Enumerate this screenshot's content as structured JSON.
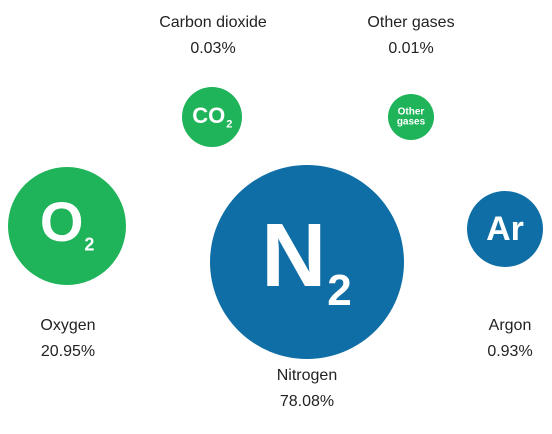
{
  "nodes": [
    {
      "name": "Carbon dioxide",
      "value": "0.03%",
      "symbol": "CO",
      "subscript": "2"
    },
    {
      "name": "Other gases",
      "value": "0.01%",
      "symbol": [
        "Other",
        "gases"
      ]
    },
    {
      "name": "Oxygen",
      "value": "20.95%",
      "symbol": "O",
      "subscript": "2"
    },
    {
      "name": "Nitrogen",
      "value": "78.08%",
      "symbol": "N",
      "subscript": "2"
    },
    {
      "name": "Argon",
      "value": "0.93%",
      "symbol": "Ar"
    }
  ]
}
